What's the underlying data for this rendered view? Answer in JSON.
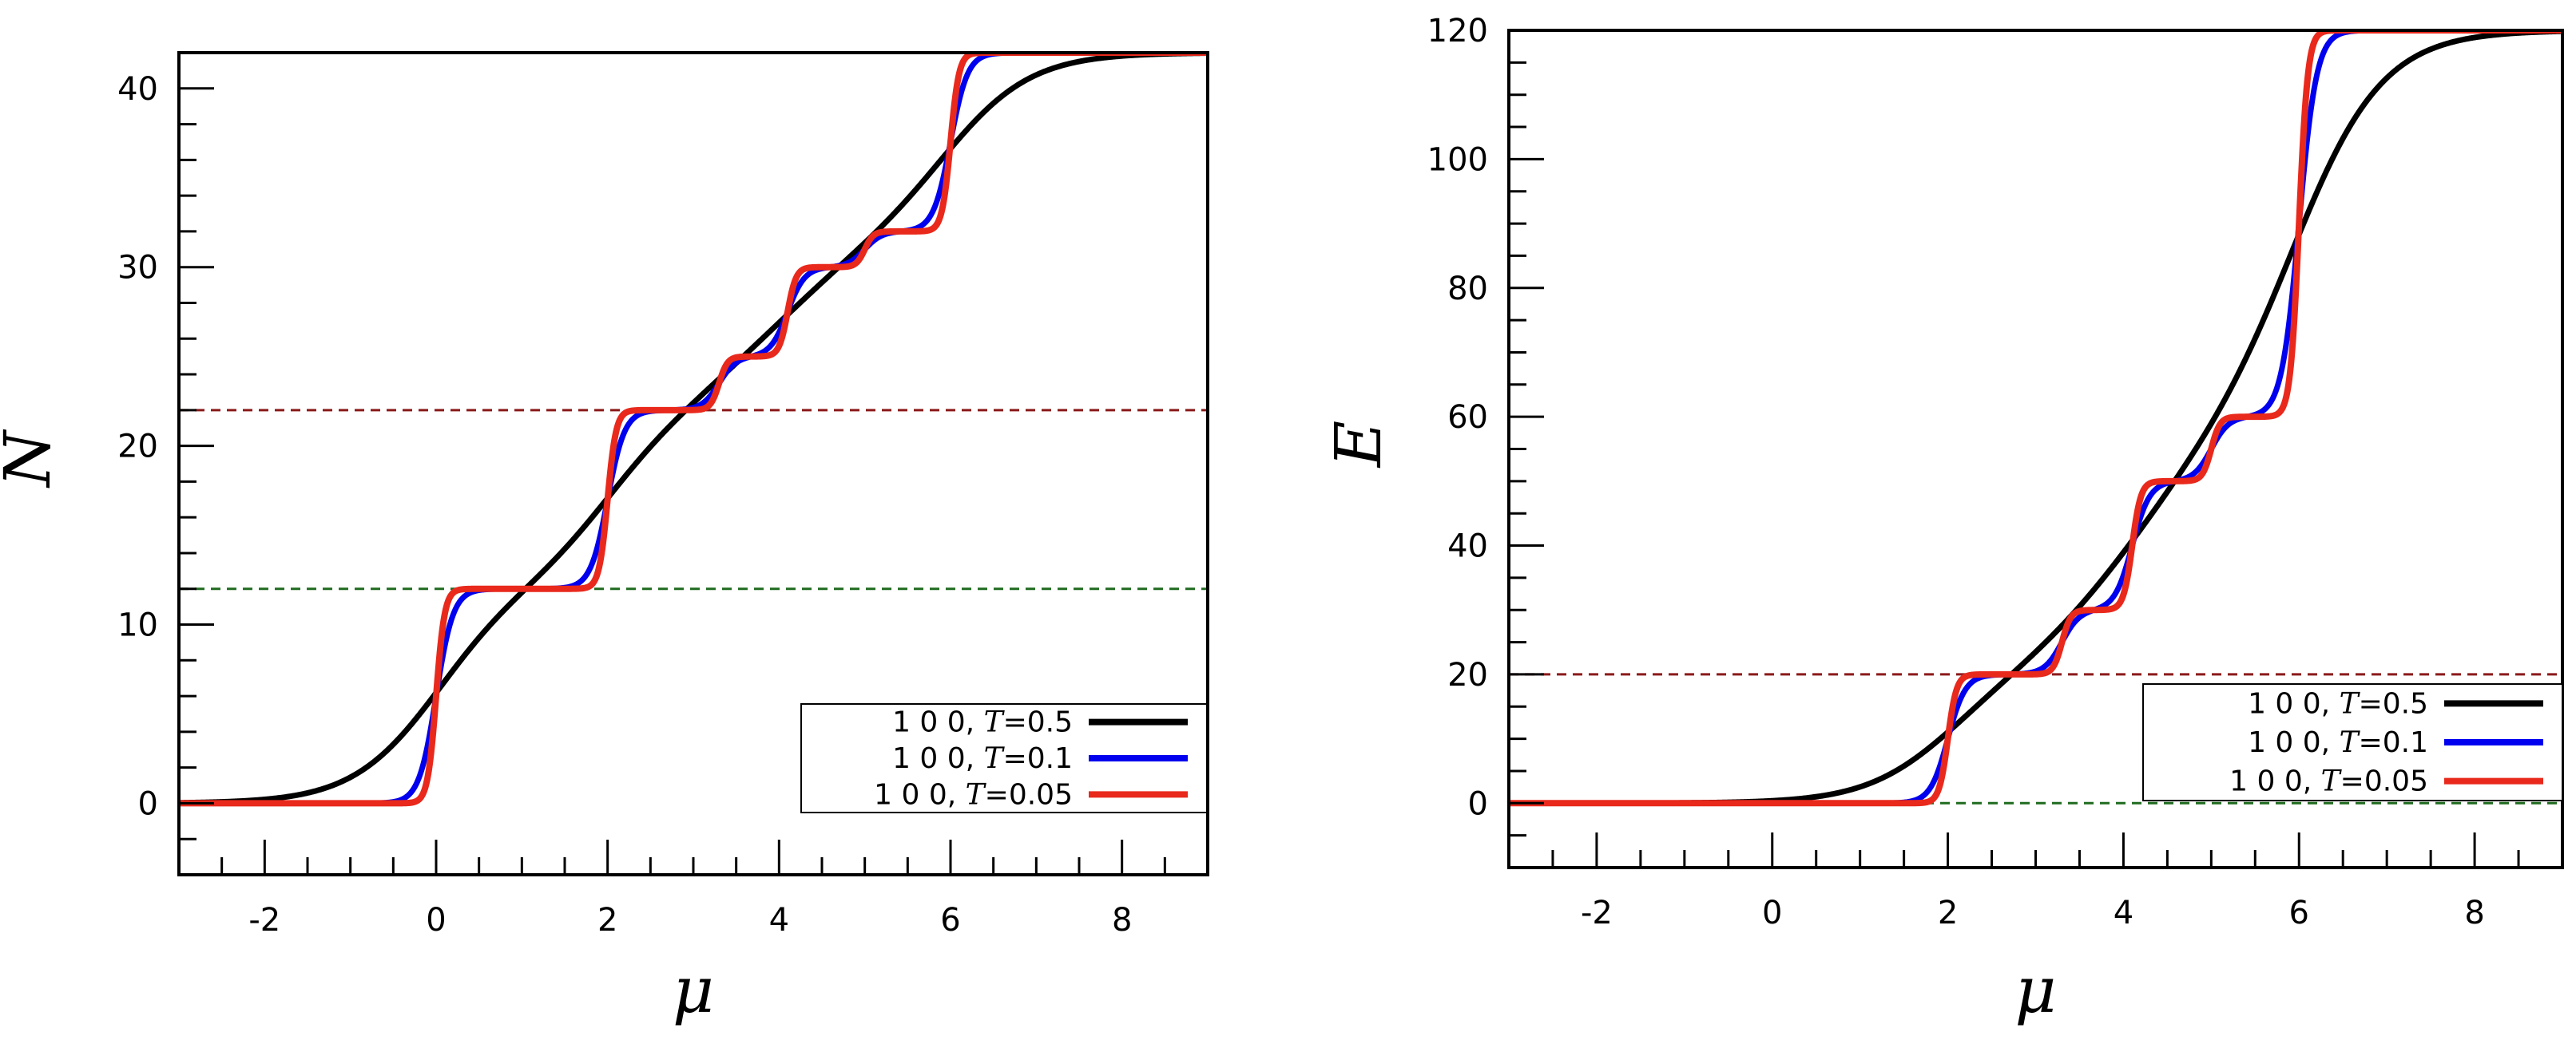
{
  "chart_data": [
    {
      "type": "line",
      "panel": "left",
      "xlabel": "μ",
      "ylabel": "N",
      "xlim": [
        -3,
        9
      ],
      "ylim": [
        -4,
        42
      ],
      "xticks": [
        -2,
        0,
        2,
        4,
        6,
        8
      ],
      "xtick_labels": [
        "-2",
        "0",
        "2",
        "4",
        "6",
        "8"
      ],
      "yticks": [
        0,
        10,
        20,
        30,
        40
      ],
      "ytick_labels": [
        "0",
        "10",
        "20",
        "30",
        "40"
      ],
      "minor_x_step": 0.5,
      "minor_y_step": 2,
      "legend_position": "lower-right",
      "steps": [
        {
          "mu": 0.0,
          "dy": 12
        },
        {
          "mu": 2.0,
          "dy": 10
        },
        {
          "mu": 3.3,
          "dy": 3
        },
        {
          "mu": 4.1,
          "dy": 5
        },
        {
          "mu": 5.0,
          "dy": 2
        },
        {
          "mu": 6.0,
          "dy": 10
        }
      ],
      "series": [
        {
          "name_prefix": "1 0 0, ",
          "name_var": "T",
          "name_value": "=0.5",
          "T": 0.5,
          "color": "#000000"
        },
        {
          "name_prefix": "1 0 0, ",
          "name_var": "T",
          "name_value": "=0.1",
          "T": 0.1,
          "color": "#0000ee"
        },
        {
          "name_prefix": "1 0 0, ",
          "name_var": "T",
          "name_value": "=0.05",
          "T": 0.05,
          "color": "#e8291c"
        }
      ],
      "reference_lines": [
        {
          "y": 22,
          "color": "#8b1a1a"
        },
        {
          "y": 12,
          "color": "#1f6b1f"
        }
      ]
    },
    {
      "type": "line",
      "panel": "right",
      "xlabel": "μ",
      "ylabel": "E",
      "xlim": [
        -3,
        9
      ],
      "ylim": [
        -10,
        120
      ],
      "xticks": [
        -2,
        0,
        2,
        4,
        6,
        8
      ],
      "xtick_labels": [
        "-2",
        "0",
        "2",
        "4",
        "6",
        "8"
      ],
      "yticks": [
        0,
        20,
        40,
        60,
        80,
        100,
        120
      ],
      "ytick_labels": [
        "0",
        "20",
        "40",
        "60",
        "80",
        "100",
        "120"
      ],
      "minor_x_step": 0.5,
      "minor_y_step": 5,
      "legend_position": "lower-right",
      "steps": [
        {
          "mu": 2.0,
          "dy": 20
        },
        {
          "mu": 3.3,
          "dy": 10
        },
        {
          "mu": 4.1,
          "dy": 20
        },
        {
          "mu": 5.0,
          "dy": 10
        },
        {
          "mu": 6.0,
          "dy": 60
        }
      ],
      "series": [
        {
          "name_prefix": "1 0 0, ",
          "name_var": "T",
          "name_value": "=0.5",
          "T": 0.5,
          "color": "#000000"
        },
        {
          "name_prefix": "1 0 0, ",
          "name_var": "T",
          "name_value": "=0.1",
          "T": 0.1,
          "color": "#0000ee"
        },
        {
          "name_prefix": "1 0 0, ",
          "name_var": "T",
          "name_value": "=0.05",
          "T": 0.05,
          "color": "#e8291c"
        }
      ],
      "reference_lines": [
        {
          "y": 20,
          "color": "#8b1a1a"
        },
        {
          "y": 0,
          "color": "#1f6b1f"
        }
      ]
    }
  ]
}
